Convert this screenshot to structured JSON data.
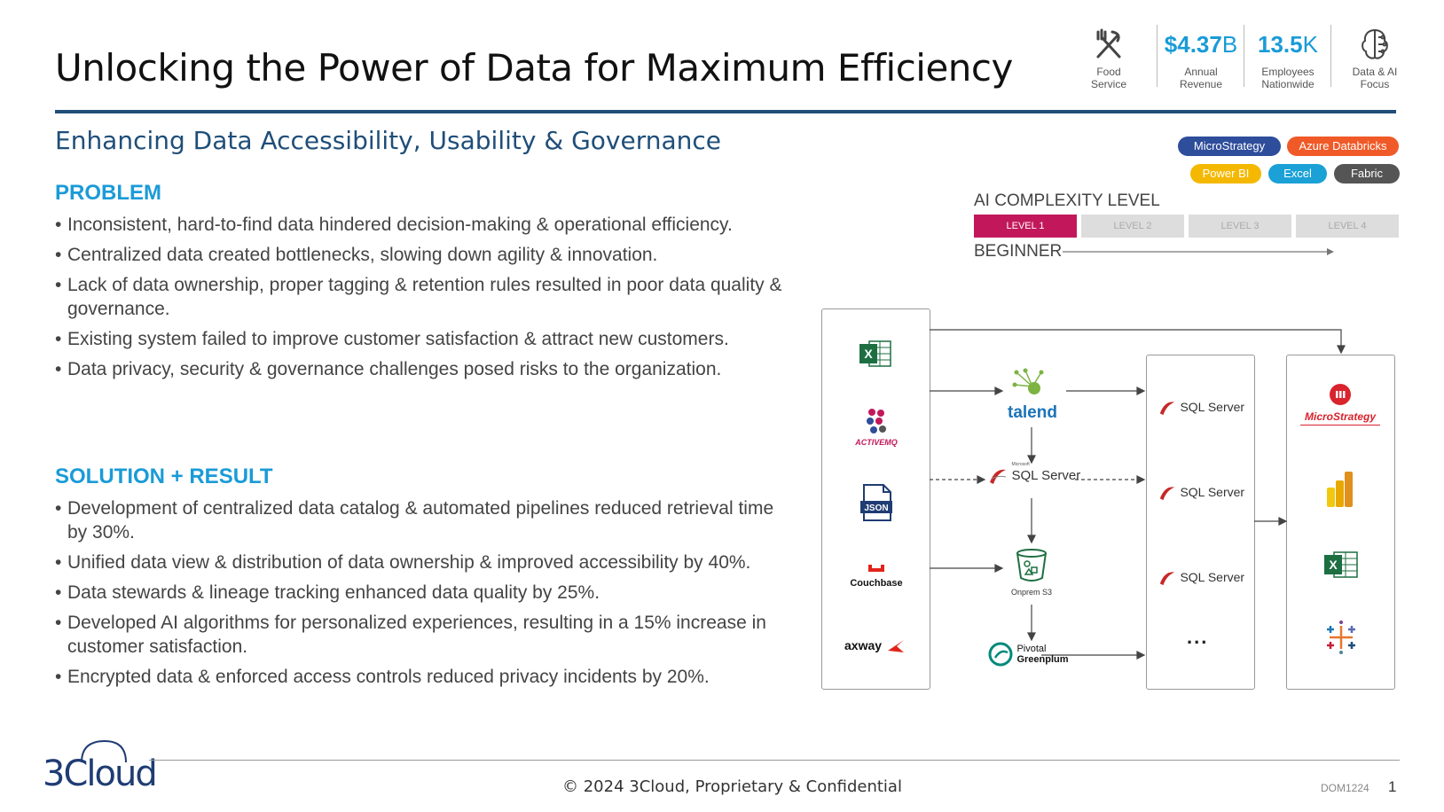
{
  "title": "Unlocking the Power of Data for Maximum Efficiency",
  "subtitle": "Enhancing Data Accessibility, Usability & Governance",
  "stats": [
    {
      "icon": "utensils-icon",
      "value": "",
      "unit": "",
      "label_line1": "Food",
      "label_line2": "Service"
    },
    {
      "value": "$4.37",
      "unit": "B",
      "label_line1": "Annual",
      "label_line2": "Revenue"
    },
    {
      "value": "13.5",
      "unit": "K",
      "label_line1": "Employees",
      "label_line2": "Nationwide"
    },
    {
      "icon": "brain-circuit-icon",
      "value": "",
      "unit": "",
      "label_line1": "Data & AI",
      "label_line2": "Focus"
    }
  ],
  "tech_pills": [
    {
      "label": "MicroStrategy",
      "color": "#2e4d9b"
    },
    {
      "label": "Azure Databricks",
      "color": "#f05a28"
    },
    {
      "label": "Power BI",
      "color": "#f5b800"
    },
    {
      "label": "Excel",
      "color": "#1ba1d6"
    },
    {
      "label": "Fabric",
      "color": "#555555"
    }
  ],
  "complexity": {
    "heading": "AI COMPLEXITY LEVEL",
    "levels": [
      "LEVEL 1",
      "LEVEL 2",
      "LEVEL 3",
      "LEVEL 4"
    ],
    "active_level": 1,
    "active_color": "#c2185b",
    "scale_label": "BEGINNER"
  },
  "problem": {
    "heading": "PROBLEM",
    "bullets": [
      "Inconsistent, hard-to-find data hindered decision-making & operational efficiency.",
      "Centralized data created bottlenecks, slowing down agility & innovation.",
      "Lack of data ownership, proper tagging & retention rules resulted in poor data quality & governance.",
      "Existing system failed to improve customer satisfaction & attract new customers.",
      "Data privacy, security & governance challenges posed risks to the organization."
    ]
  },
  "solution": {
    "heading": "SOLUTION + RESULT",
    "bullets": [
      "Development of centralized data catalog & automated pipelines reduced retrieval time by 30%.",
      "Unified data view & distribution of data ownership & improved accessibility by 40%.",
      "Data stewards & lineage tracking enhanced data quality by 25%.",
      "Developed AI algorithms for personalized experiences, resulting in a 15% increase in customer satisfaction.",
      "Encrypted data & enforced access controls reduced privacy incidents by 20%."
    ]
  },
  "diagram": {
    "sources": [
      "Excel",
      "ACTIVEMQ",
      "JSON",
      "Couchbase",
      "axway"
    ],
    "middle": {
      "talend": "talend",
      "sql_prefix": "Microsoft",
      "sql": "SQL Server",
      "s3": "Onprem S3",
      "greenplum_line1": "Pivotal",
      "greenplum_line2": "Greenplum"
    },
    "warehouse": [
      "SQL Server",
      "SQL Server",
      "SQL Server",
      "..."
    ],
    "consumers": [
      "MicroStrategy",
      "Power BI",
      "Excel",
      "Tableau"
    ]
  },
  "footer": {
    "brand": "3Cloud",
    "copyright": "© 2024 3Cloud, Proprietary & Confidential",
    "doc_id": "DOM1224",
    "page": "1"
  }
}
